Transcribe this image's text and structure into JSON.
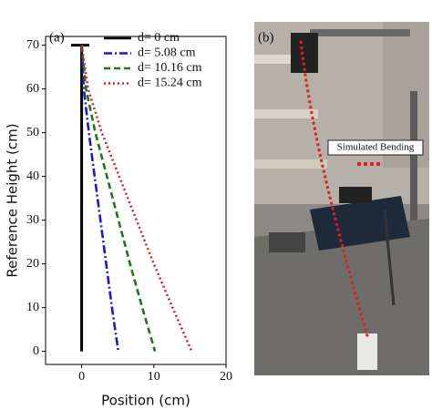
{
  "chart_data": {
    "type": "line",
    "panel_label": "(a)",
    "xlabel": "Position (cm)",
    "ylabel": "Reference Height (cm)",
    "xlim": [
      -5,
      20
    ],
    "xticks": [
      0,
      10,
      20
    ],
    "ylim": [
      -3,
      72
    ],
    "yticks": [
      0,
      10,
      20,
      30,
      40,
      50,
      60,
      70
    ],
    "legend": "upper right",
    "series": [
      {
        "name": "d= 0 cm",
        "color": "#000000",
        "linestyle": "solid",
        "x": [
          0,
          0
        ],
        "y": [
          70,
          0
        ]
      },
      {
        "name": "d= 5.08 cm",
        "color": "#1a1ad6",
        "linestyle": "dashdot",
        "x": [
          0,
          0.3,
          1.0,
          1.8,
          2.6,
          3.4,
          4.2,
          5.08
        ],
        "y": [
          70,
          60,
          50,
          40,
          30,
          20,
          10,
          0
        ]
      },
      {
        "name": "d= 10.16 cm",
        "color": "#187a18",
        "linestyle": "dashed",
        "x": [
          0,
          0.6,
          1.9,
          3.5,
          5.1,
          6.7,
          8.4,
          10.16
        ],
        "y": [
          70,
          60,
          50,
          40,
          30,
          20,
          10,
          0
        ]
      },
      {
        "name": "d= 15.24 cm",
        "color": "#e0201e",
        "linestyle": "dotted",
        "x": [
          0,
          0.9,
          2.8,
          5.2,
          7.6,
          10,
          12.6,
          15.24
        ],
        "y": [
          70,
          60,
          50,
          40,
          30,
          20,
          10,
          0
        ]
      }
    ]
  },
  "photo": {
    "panel_label": "(b)",
    "callout": "Simulated Bending"
  }
}
